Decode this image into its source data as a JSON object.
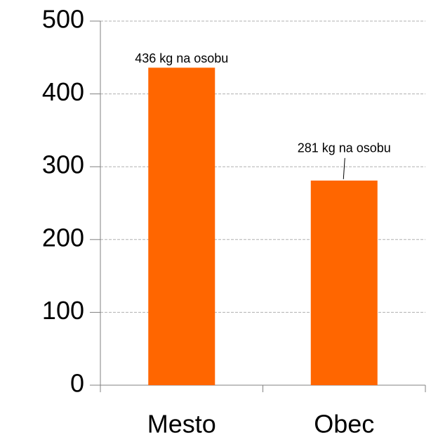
{
  "chart_data": {
    "type": "bar",
    "categories": [
      "Mesto",
      "Obec"
    ],
    "values": [
      436,
      281
    ],
    "value_labels": [
      "436 kg na osobu",
      "281 kg na osobu"
    ],
    "color": "#ff6600",
    "ylim": [
      0,
      500
    ],
    "yticks": [
      0,
      100,
      200,
      300,
      400,
      500
    ],
    "grid": true
  }
}
